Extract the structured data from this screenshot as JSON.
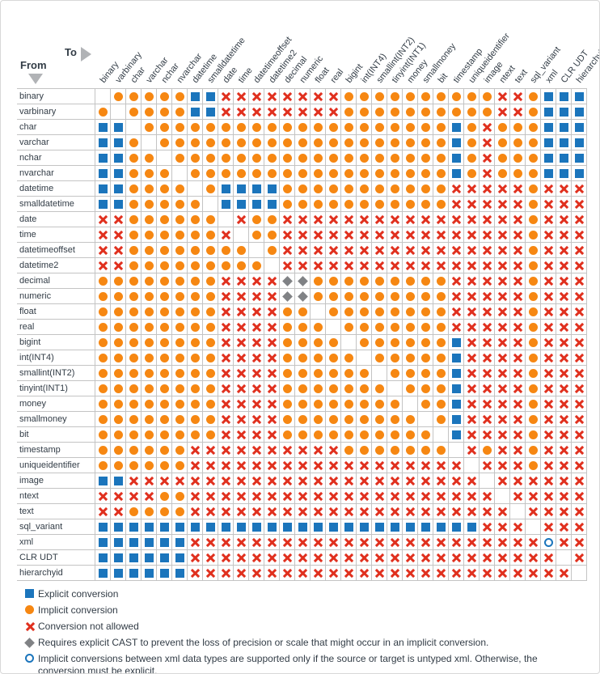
{
  "header": {
    "from_label": "From",
    "to_label": "To"
  },
  "types": [
    "binary",
    "varbinary",
    "char",
    "varchar",
    "nchar",
    "nvarchar",
    "datetime",
    "smalldatetime",
    "date",
    "time",
    "datetimeoffset",
    "datetime2",
    "decimal",
    "numeric",
    "float",
    "real",
    "bigint",
    "int(INT4)",
    "smallint(INT2)",
    "tinyint(INT1)",
    "money",
    "smallmoney",
    "bit",
    "timestamp",
    "uniqueidentifier",
    "image",
    "ntext",
    "text",
    "sql_variant",
    "xml",
    "CLR UDT",
    "hierarchyid"
  ],
  "symbol_meanings": {
    "E": "explicit-conversion",
    "I": "implicit-conversion",
    "X": "conversion-not-allowed",
    "D": "requires-explicit-cast",
    "O": "xml-untyped-implicit-only",
    ".": "same-type-blank"
  },
  "matrix": [
    ".IIIIIEEXXXXXXXXIIIIIIIIIIXXIEEE",
    "I.IIIIEEXXXXXXXXIIIIIIIIIIXXIEEE",
    "EE.IIIIIIIIIIIIIIIIIIIIEIXIIIEEE",
    "EEI.IIIIIIIIIIIIIIIIIIIEIXIIIEEE",
    "EEII.IIIIIIIIIIIIIIIIIIEIXIIIEEE",
    "EEIII.IIIIIIIIIIIIIIIIIEIXIIIEEE",
    "EEIIII.IEEEEIIIIIIIIIIIXXXXXIXXX",
    "EEIIIII.EEEEIIIIIIIIIIIXXXXXIXXX",
    "XXIIIIII.XIIXXXXXXXXXXXXXXXXIXXX",
    "XXIIIIIIX.IIXXXXXXXXXXXXXXXXIXXX",
    "XXIIIIIIII.IXXXXXXXXXXXXXXXXIXXX",
    "XXIIIIIIIII.XXXXXXXXXXXXXXXXIXXX",
    "IIIIIIIIXXXXDDIIIIIIIIIXXXXXIXXX",
    "IIIIIIIIXXXXDDIIIIIIIIIXXXXXIXXX",
    "IIIIIIIIXXXXII.IIIIIIIIXXXXXIXXX",
    "IIIIIIIIXXXXIII.IIIIIIIXXXXXIXXX",
    "IIIIIIIIXXXXIIII.IIIIIIEXXXXIXXX",
    "IIIIIIIIXXXXIIIII.IIIIIEXXXXIXXX",
    "IIIIIIIIXXXXIIIIII.IIIIEXXXXIXXX",
    "IIIIIIIIXXXXIIIIIII.IIIEXXXXIXXX",
    "IIIIIIIIXXXXIIIIIIII.IIEXXXXIXXX",
    "IIIIIIIIXXXXIIIIIIIII.IEXXXXIXXX",
    "IIIIIIIIXXXXIIIIIIIIII.EXXXXIXXX",
    "IIIIIIXXXXXXXXXXIIIIIII.XIXXIXXX",
    "IIIIIIXXXXXXXXXXXXXXXXXX.XXXIXXX",
    "EEXXXXXXXXXXXXXXXXXXXXXXX.XXXXXX",
    "XXXXIIXXXXXXXXXXXXXXXXXXXX.XXXXX",
    "XXIIIIXXXXXXXXXXXXXXXXXXXXX.XXXX",
    "EEEEEEEEEEEEEEEEEEEEEEEEEXXX.XXX",
    "EEEEEEXXXXXXXXXXXXXXXXXXXXXXXOXX",
    "EEEEEEXXXXXXXXXXXXXXXXXXXXXXXX.X",
    "EEEEEEXXXXXXXXXXXXXXXXXXXXXXXXX."
  ],
  "legend": [
    {
      "symbol": "E",
      "label": "Explicit conversion"
    },
    {
      "symbol": "I",
      "label": "Implicit conversion"
    },
    {
      "symbol": "X",
      "label": "Conversion not allowed"
    },
    {
      "symbol": "D",
      "label": "Requires explicit CAST to prevent the loss of precision or scale that might occur in an implicit conversion."
    },
    {
      "symbol": "O",
      "label": "Implicit conversions between xml data types are supported only if the source or target is untyped xml. Otherwise, the conversion must be explicit."
    }
  ],
  "colors": {
    "explicit_blue": "#1b75bc",
    "implicit_orange": "#f68712",
    "not_allowed_red": "#e0301e",
    "diamond_gray": "#808285",
    "grid_line": "#c4c4c4",
    "label_text": "#323c46",
    "triangle_gray": "#b1b3b6"
  }
}
